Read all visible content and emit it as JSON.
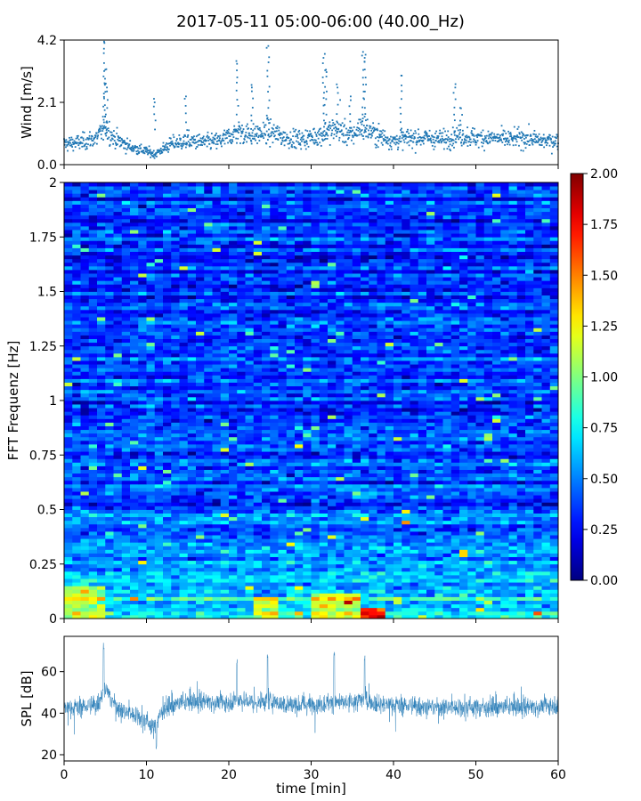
{
  "chart_data": {
    "title": "2017-05-11 05:00-06:00 (40.00_Hz)",
    "panels": [
      {
        "type": "scatter",
        "name": "wind",
        "ylabel": "Wind [m/s]",
        "xlim": [
          0,
          60
        ],
        "ylim": [
          0.0,
          4.2
        ],
        "yticks": [
          "0.0",
          "2.1",
          "4.2"
        ],
        "ytick_values": [
          0.0,
          2.1,
          4.2
        ],
        "color": "#1f77b4",
        "baseline_profile": [
          [
            0,
            0.7
          ],
          [
            2,
            0.75
          ],
          [
            4,
            0.9
          ],
          [
            5,
            1.3
          ],
          [
            6,
            0.9
          ],
          [
            8,
            0.6
          ],
          [
            10,
            0.45
          ],
          [
            11,
            0.35
          ],
          [
            13,
            0.7
          ],
          [
            15,
            0.8
          ],
          [
            17,
            0.75
          ],
          [
            19,
            0.8
          ],
          [
            21,
            1.1
          ],
          [
            23,
            1.0
          ],
          [
            25,
            1.1
          ],
          [
            27,
            0.9
          ],
          [
            29,
            0.85
          ],
          [
            31,
            1.0
          ],
          [
            33,
            1.2
          ],
          [
            35,
            0.95
          ],
          [
            36,
            1.3
          ],
          [
            38,
            1.0
          ],
          [
            40,
            0.8
          ],
          [
            42,
            0.9
          ],
          [
            44,
            0.9
          ],
          [
            46,
            0.85
          ],
          [
            48,
            1.0
          ],
          [
            50,
            0.9
          ],
          [
            52,
            0.9
          ],
          [
            54,
            0.85
          ],
          [
            56,
            0.9
          ],
          [
            58,
            0.8
          ],
          [
            60,
            0.8
          ]
        ],
        "spikes": [
          [
            4.9,
            4.1
          ],
          [
            5.0,
            3.2
          ],
          [
            5.2,
            2.6
          ],
          [
            11.0,
            2.1
          ],
          [
            14.8,
            2.3
          ],
          [
            21.0,
            3.4
          ],
          [
            22.8,
            2.6
          ],
          [
            24.8,
            4.0
          ],
          [
            31.5,
            3.6
          ],
          [
            31.8,
            3.2
          ],
          [
            33.2,
            2.6
          ],
          [
            34.8,
            2.3
          ],
          [
            36.3,
            3.8
          ],
          [
            36.5,
            3.6
          ],
          [
            41.0,
            3.0
          ],
          [
            47.5,
            2.6
          ],
          [
            48.2,
            1.9
          ]
        ]
      },
      {
        "type": "heatmap",
        "name": "spectrogram",
        "ylabel": "FFT Frequenz [Hz]",
        "xlim": [
          0,
          60
        ],
        "ylim": [
          0,
          2
        ],
        "yticks": [
          "0",
          "0.25",
          "0.5",
          "0.75",
          "1",
          "1.25",
          "1.5",
          "1.75",
          "2"
        ],
        "ytick_values": [
          0,
          0.25,
          0.5,
          0.75,
          1,
          1.25,
          1.5,
          1.75,
          2
        ],
        "colormap": "jet",
        "colorbar": {
          "vmin": 0.0,
          "vmax": 2.0,
          "ticks": [
            "0.00",
            "0.25",
            "0.50",
            "0.75",
            "1.00",
            "1.25",
            "1.50",
            "1.75",
            "2.00"
          ],
          "tick_values": [
            0.0,
            0.25,
            0.5,
            0.75,
            1.0,
            1.25,
            1.5,
            1.75,
            2.0
          ]
        },
        "typical_value_low_freq": 0.75,
        "typical_value_high_freq": 0.35,
        "hot_regions": [
          {
            "t": [
              0,
              5
            ],
            "f": [
              0,
              0.15
            ],
            "value": 1.1
          },
          {
            "t": [
              23,
              26
            ],
            "f": [
              0,
              0.1
            ],
            "value": 1.2
          },
          {
            "t": [
              30,
              36
            ],
            "f": [
              0,
              0.12
            ],
            "value": 1.2
          },
          {
            "t": [
              36,
              39
            ],
            "f": [
              0,
              0.05
            ],
            "value": 1.7
          }
        ]
      },
      {
        "type": "line",
        "name": "spl",
        "ylabel": "SPL [dB]",
        "xlabel": "time [min]",
        "xlim": [
          0,
          60
        ],
        "ylim": [
          17,
          77
        ],
        "yticks": [
          "20",
          "40",
          "60"
        ],
        "ytick_values": [
          20,
          40,
          60
        ],
        "xticks": [
          "0",
          "10",
          "20",
          "30",
          "40",
          "50",
          "60"
        ],
        "xtick_values": [
          0,
          10,
          20,
          30,
          40,
          50,
          60
        ],
        "color": "#1f77b4",
        "mean_profile": [
          [
            0,
            42
          ],
          [
            2,
            43
          ],
          [
            4,
            44
          ],
          [
            5,
            52
          ],
          [
            5.6,
            47
          ],
          [
            7,
            41
          ],
          [
            9,
            39
          ],
          [
            10,
            36
          ],
          [
            11,
            33
          ],
          [
            12,
            42
          ],
          [
            14,
            45
          ],
          [
            17,
            46
          ],
          [
            20,
            45
          ],
          [
            21,
            47
          ],
          [
            23,
            45
          ],
          [
            25,
            46
          ],
          [
            27,
            44
          ],
          [
            30,
            44
          ],
          [
            33,
            45
          ],
          [
            35,
            45
          ],
          [
            36.5,
            47
          ],
          [
            38,
            44
          ],
          [
            40,
            44
          ],
          [
            45,
            43
          ],
          [
            50,
            43
          ],
          [
            55,
            43
          ],
          [
            60,
            44
          ]
        ],
        "spikes": [
          [
            4.8,
            72
          ],
          [
            21.0,
            64
          ],
          [
            24.7,
            66
          ],
          [
            32.8,
            68
          ],
          [
            36.5,
            66
          ],
          [
            11.2,
            24
          ]
        ]
      }
    ]
  }
}
